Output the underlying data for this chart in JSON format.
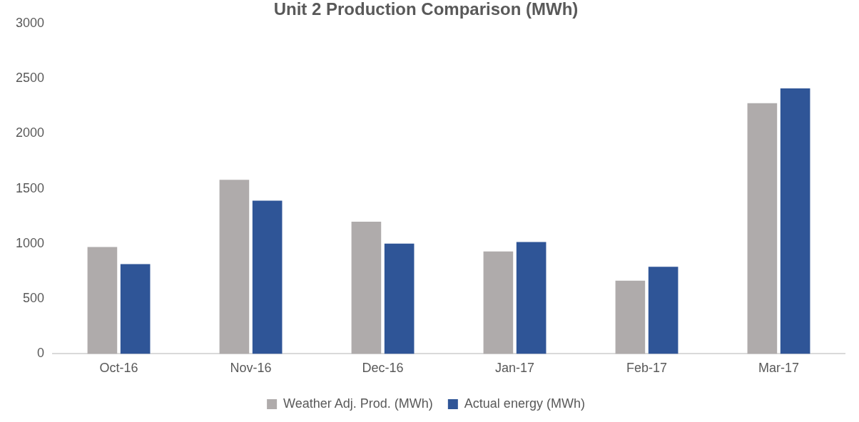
{
  "chart_data": {
    "type": "bar",
    "title": "Unit 2 Production Comparison (MWh)",
    "categories": [
      "Oct-16",
      "Nov-16",
      "Dec-16",
      "Jan-17",
      "Feb-17",
      "Mar-17"
    ],
    "series": [
      {
        "name": "Weather Adj. Prod. (MWh)",
        "color": "#afabab",
        "values": [
          970,
          1580,
          1200,
          930,
          665,
          2275
        ]
      },
      {
        "name": "Actual energy (MWh)",
        "color": "#2f5597",
        "values": [
          815,
          1390,
          1000,
          1015,
          790,
          2410
        ]
      }
    ],
    "ylim": [
      0,
      3000
    ],
    "yticks": [
      0,
      500,
      1000,
      1500,
      2000,
      2500,
      3000
    ],
    "grid": false,
    "legend": "bottom"
  }
}
